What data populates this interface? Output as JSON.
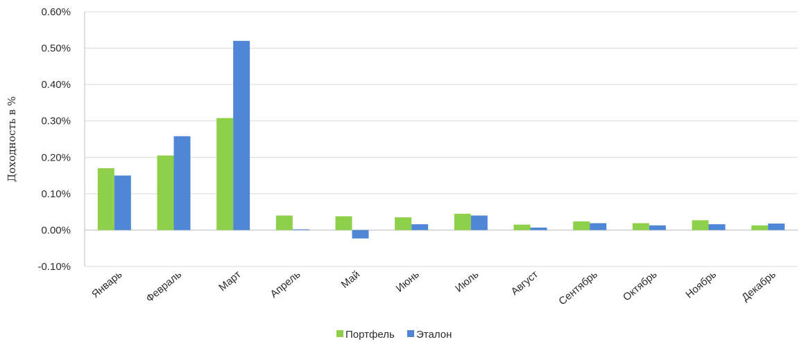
{
  "chart_data": {
    "type": "bar",
    "ylabel": "Доходность в %",
    "ylim": [
      -0.1,
      0.6
    ],
    "yticks": [
      -0.1,
      0.0,
      0.1,
      0.2,
      0.3,
      0.4,
      0.5,
      0.6
    ],
    "ytick_labels": [
      "-0.10%",
      "0.00%",
      "0.10%",
      "0.20%",
      "0.30%",
      "0.40%",
      "0.50%",
      "0.60%"
    ],
    "grid": true,
    "legend_position": "bottom",
    "categories": [
      "Январь",
      "Февраль",
      "Март",
      "Апрель",
      "Май",
      "Июнь",
      "Июль",
      "Август",
      "Сентябрь",
      "Октябрь",
      "Ноябрь",
      "Декабрь"
    ],
    "series": [
      {
        "name": "Портфель",
        "color": "#8ed04a",
        "values": [
          0.17,
          0.205,
          0.308,
          0.04,
          0.038,
          0.035,
          0.045,
          0.015,
          0.024,
          0.019,
          0.027,
          0.013
        ]
      },
      {
        "name": "Эталон",
        "color": "#4f86d6",
        "values": [
          0.15,
          0.258,
          0.52,
          0.002,
          -0.023,
          0.016,
          0.04,
          0.007,
          0.019,
          0.013,
          0.016,
          0.018
        ]
      }
    ]
  }
}
